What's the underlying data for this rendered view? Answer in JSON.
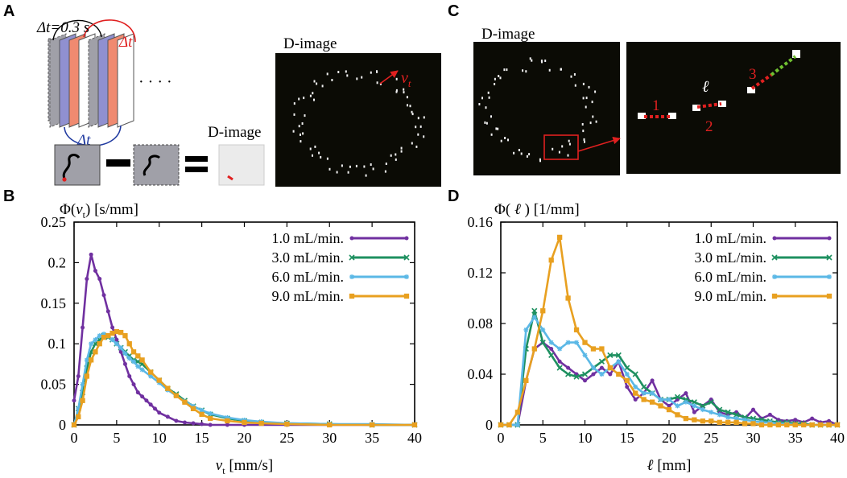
{
  "panels": {
    "a": {
      "letter": "A",
      "dt_label": "Δt=0.3 s",
      "dt_red": "Δt",
      "dt_blue": "Δt",
      "ellipsis": "· · · ·",
      "minus": "−",
      "equals": "=",
      "dimage_label": "D-image",
      "dimage_title": "D-image",
      "vt_symbol": "v",
      "vt_sub": "t"
    },
    "b": {
      "letter": "B"
    },
    "c": {
      "letter": "C",
      "dimage_title": "D-image",
      "ell_symbol": "ℓ",
      "labels": [
        "1",
        "2",
        "3"
      ]
    },
    "d": {
      "letter": "D"
    }
  },
  "colors": {
    "purple": "#7030a0",
    "green": "#1e9060",
    "lightblue": "#5bb8e6",
    "orange": "#e8a020",
    "red": "#e02020",
    "blue": "#203aa0",
    "salmon": "#f08a70",
    "lavender": "#9090d0",
    "gray": "#a0a0a8"
  },
  "chart_data": [
    {
      "type": "line",
      "title": "Φ(vt) [s/mm]",
      "ylabel_prefix": "Φ(",
      "ylabel_var": "v",
      "ylabel_sub": "t",
      "ylabel_suffix": ") [s/mm]",
      "xlabel_var": "v",
      "xlabel_sub": "t",
      "xlabel_suffix": " [mm/s]",
      "xlim": [
        0,
        40
      ],
      "ylim": [
        0,
        0.25
      ],
      "xticks": [
        "0",
        "5",
        "10",
        "15",
        "20",
        "25",
        "30",
        "35",
        "40"
      ],
      "yticks": [
        "0",
        "0.05",
        "0.1",
        "0.15",
        "0.2",
        "0.25"
      ],
      "legend_position": "top-right",
      "series": [
        {
          "name": "1.0 mL/min.",
          "marker": "circle",
          "color": "#7030a0",
          "x": [
            0,
            0.5,
            1,
            1.5,
            2,
            2.5,
            3,
            3.5,
            4,
            4.5,
            5,
            5.5,
            6,
            6.5,
            7,
            7.5,
            8,
            8.5,
            9,
            9.5,
            10,
            11,
            12,
            13,
            14,
            15,
            16,
            18,
            20,
            25,
            30,
            35,
            40
          ],
          "y": [
            0.03,
            0.06,
            0.12,
            0.18,
            0.21,
            0.19,
            0.18,
            0.16,
            0.14,
            0.12,
            0.105,
            0.09,
            0.075,
            0.06,
            0.05,
            0.04,
            0.035,
            0.03,
            0.025,
            0.02,
            0.015,
            0.01,
            0.005,
            0.003,
            0.002,
            0.001,
            0,
            0,
            0,
            0,
            0,
            0,
            0
          ]
        },
        {
          "name": "3.0 mL/min.",
          "marker": "x",
          "color": "#1e9060",
          "x": [
            0,
            0.5,
            1,
            1.5,
            2,
            2.5,
            3,
            3.5,
            4,
            4.5,
            5,
            5.5,
            6,
            6.5,
            7,
            7.5,
            8,
            9,
            10,
            11,
            12,
            13,
            14,
            15,
            16,
            18,
            20,
            22,
            25,
            30,
            35,
            40
          ],
          "y": [
            0.0,
            0.02,
            0.04,
            0.07,
            0.09,
            0.1,
            0.105,
            0.11,
            0.108,
            0.105,
            0.1,
            0.095,
            0.09,
            0.085,
            0.08,
            0.078,
            0.075,
            0.065,
            0.055,
            0.045,
            0.038,
            0.03,
            0.023,
            0.018,
            0.013,
            0.008,
            0.005,
            0.003,
            0.002,
            0.001,
            0,
            0
          ]
        },
        {
          "name": "6.0 mL/min.",
          "marker": "star",
          "color": "#5bb8e6",
          "x": [
            0,
            0.5,
            1,
            1.5,
            2,
            2.5,
            3,
            3.5,
            4,
            4.5,
            5,
            5.5,
            6,
            6.5,
            7,
            7.5,
            8,
            9,
            10,
            11,
            12,
            13,
            14,
            15,
            16,
            18,
            20,
            22,
            25,
            30,
            35,
            40
          ],
          "y": [
            0.0,
            0.02,
            0.05,
            0.08,
            0.1,
            0.105,
            0.11,
            0.112,
            0.11,
            0.105,
            0.1,
            0.095,
            0.088,
            0.082,
            0.078,
            0.072,
            0.068,
            0.06,
            0.052,
            0.043,
            0.036,
            0.029,
            0.023,
            0.018,
            0.014,
            0.009,
            0.006,
            0.004,
            0.002,
            0.001,
            0.001,
            0
          ]
        },
        {
          "name": "9.0 mL/min.",
          "marker": "square",
          "color": "#e8a020",
          "x": [
            0,
            0.5,
            1,
            1.5,
            2,
            2.5,
            3,
            3.5,
            4,
            4.5,
            5,
            5.5,
            6,
            6.5,
            7,
            7.5,
            8,
            9,
            10,
            11,
            12,
            13,
            14,
            15,
            16,
            18,
            20,
            22,
            25,
            30,
            35,
            40
          ],
          "y": [
            0.0,
            0.01,
            0.03,
            0.06,
            0.08,
            0.09,
            0.1,
            0.108,
            0.11,
            0.113,
            0.115,
            0.114,
            0.11,
            0.1,
            0.09,
            0.085,
            0.08,
            0.065,
            0.055,
            0.045,
            0.036,
            0.028,
            0.02,
            0.013,
            0.008,
            0.005,
            0.003,
            0.002,
            0.001,
            0,
            0,
            0
          ]
        }
      ]
    },
    {
      "type": "line",
      "title": "Φ(ℓ) [1/mm]",
      "ylabel_prefix": "Φ( ",
      "ylabel_var": "ℓ",
      "ylabel_sub": "",
      "ylabel_suffix": " ) [1/mm]",
      "xlabel_var": "ℓ",
      "xlabel_sub": "",
      "xlabel_suffix": " [mm]",
      "xlim": [
        0,
        40
      ],
      "ylim": [
        0,
        0.16
      ],
      "xticks": [
        "0",
        "5",
        "10",
        "15",
        "20",
        "25",
        "30",
        "35",
        "40"
      ],
      "yticks": [
        "0",
        "0.04",
        "0.08",
        "0.12",
        "0.16"
      ],
      "legend_position": "top-right",
      "series": [
        {
          "name": "1.0 mL/min.",
          "marker": "circle",
          "color": "#7030a0",
          "x": [
            0,
            1,
            2,
            3,
            4,
            5,
            6,
            7,
            8,
            9,
            10,
            11,
            12,
            13,
            14,
            15,
            16,
            17,
            18,
            19,
            20,
            21,
            22,
            23,
            24,
            25,
            26,
            27,
            28,
            29,
            30,
            31,
            32,
            33,
            34,
            35,
            36,
            37,
            38,
            39,
            40
          ],
          "y": [
            0,
            0,
            0,
            0.035,
            0.06,
            0.065,
            0.06,
            0.05,
            0.045,
            0.04,
            0.035,
            0.04,
            0.045,
            0.04,
            0.05,
            0.03,
            0.02,
            0.025,
            0.035,
            0.02,
            0.015,
            0.02,
            0.025,
            0.01,
            0.015,
            0.02,
            0.01,
            0.008,
            0.01,
            0.005,
            0.012,
            0.005,
            0.008,
            0.004,
            0.003,
            0.004,
            0.002,
            0.005,
            0.002,
            0.003,
            0
          ]
        },
        {
          "name": "3.0 mL/min.",
          "marker": "x",
          "color": "#1e9060",
          "x": [
            0,
            1,
            2,
            3,
            4,
            5,
            6,
            7,
            8,
            9,
            10,
            11,
            12,
            13,
            14,
            15,
            16,
            17,
            18,
            19,
            20,
            21,
            22,
            23,
            24,
            25,
            26,
            27,
            28,
            29,
            30,
            31,
            32,
            33,
            34,
            35,
            36,
            37,
            38,
            39,
            40
          ],
          "y": [
            0,
            0,
            0,
            0.06,
            0.09,
            0.065,
            0.055,
            0.045,
            0.04,
            0.038,
            0.04,
            0.045,
            0.05,
            0.055,
            0.055,
            0.045,
            0.04,
            0.03,
            0.025,
            0.02,
            0.02,
            0.022,
            0.02,
            0.018,
            0.015,
            0.018,
            0.012,
            0.01,
            0.008,
            0.006,
            0.005,
            0.004,
            0.003,
            0.002,
            0.002,
            0.001,
            0.001,
            0,
            0,
            0,
            0
          ]
        },
        {
          "name": "6.0 mL/min.",
          "marker": "star",
          "color": "#5bb8e6",
          "x": [
            0,
            1,
            2,
            3,
            4,
            5,
            6,
            7,
            8,
            9,
            10,
            11,
            12,
            13,
            14,
            15,
            16,
            17,
            18,
            19,
            20,
            21,
            22,
            23,
            24,
            25,
            26,
            27,
            28,
            29,
            30,
            31,
            32,
            33,
            34,
            35,
            36,
            37,
            38,
            39,
            40
          ],
          "y": [
            0,
            0,
            0,
            0.075,
            0.085,
            0.075,
            0.065,
            0.06,
            0.065,
            0.065,
            0.055,
            0.045,
            0.04,
            0.045,
            0.05,
            0.04,
            0.03,
            0.025,
            0.025,
            0.02,
            0.02,
            0.015,
            0.018,
            0.015,
            0.012,
            0.01,
            0.008,
            0.006,
            0.005,
            0.004,
            0.003,
            0.002,
            0.002,
            0.001,
            0.001,
            0,
            0,
            0,
            0,
            0,
            0
          ]
        },
        {
          "name": "9.0 mL/min.",
          "marker": "square",
          "color": "#e8a020",
          "x": [
            0,
            1,
            2,
            3,
            4,
            5,
            6,
            7,
            8,
            9,
            10,
            11,
            12,
            13,
            14,
            15,
            16,
            17,
            18,
            19,
            20,
            21,
            22,
            23,
            24,
            25,
            26,
            27,
            28,
            29,
            30,
            31,
            32,
            33,
            34,
            35,
            36,
            37,
            38,
            39,
            40
          ],
          "y": [
            0,
            0,
            0.01,
            0.035,
            0.06,
            0.09,
            0.13,
            0.148,
            0.1,
            0.075,
            0.065,
            0.06,
            0.06,
            0.045,
            0.04,
            0.035,
            0.025,
            0.02,
            0.018,
            0.015,
            0.012,
            0.008,
            0.005,
            0.004,
            0.003,
            0.003,
            0.002,
            0.002,
            0.002,
            0.001,
            0.001,
            0,
            0,
            0,
            0,
            0,
            0,
            0,
            0,
            0,
            0
          ]
        }
      ]
    }
  ]
}
